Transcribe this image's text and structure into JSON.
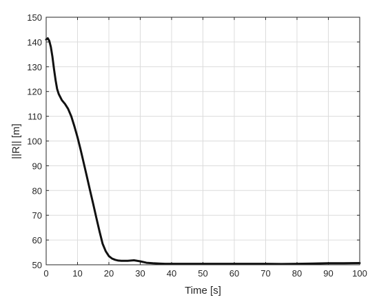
{
  "chart_data": {
    "type": "line",
    "title": "",
    "xlabel": "Time [s]",
    "ylabel": "||R|| [m]",
    "xlim": [
      0,
      100
    ],
    "ylim": [
      50,
      150
    ],
    "xticks": [
      0,
      10,
      20,
      30,
      40,
      50,
      60,
      70,
      80,
      90,
      100
    ],
    "yticks": [
      50,
      60,
      70,
      80,
      90,
      100,
      110,
      120,
      130,
      140,
      150
    ],
    "grid": true,
    "line_color": "#111111",
    "series": [
      {
        "x": [
          0,
          0.5,
          1,
          1.5,
          2,
          2.5,
          3,
          3.5,
          4,
          5,
          6,
          7,
          8,
          9,
          10,
          11,
          12,
          13,
          14,
          15,
          16,
          17,
          18,
          19,
          20,
          21,
          22,
          23,
          24,
          25,
          26,
          28,
          30,
          32,
          34,
          36,
          38,
          40,
          45,
          50,
          55,
          60,
          65,
          70,
          75,
          80,
          85,
          90,
          95,
          100
        ],
        "y": [
          141,
          141.5,
          140.5,
          138,
          134,
          129,
          124.5,
          121,
          119,
          116.5,
          115,
          113,
          110,
          106,
          101.5,
          96.5,
          91,
          85.5,
          80,
          74.5,
          69,
          63.5,
          58.5,
          55.5,
          53.5,
          52.5,
          52,
          51.7,
          51.6,
          51.6,
          51.6,
          51.8,
          51.4,
          50.8,
          50.6,
          50.5,
          50.4,
          50.4,
          50.4,
          50.4,
          50.4,
          50.4,
          50.4,
          50.4,
          50.3,
          50.4,
          50.5,
          50.6,
          50.6,
          50.7
        ]
      }
    ]
  }
}
